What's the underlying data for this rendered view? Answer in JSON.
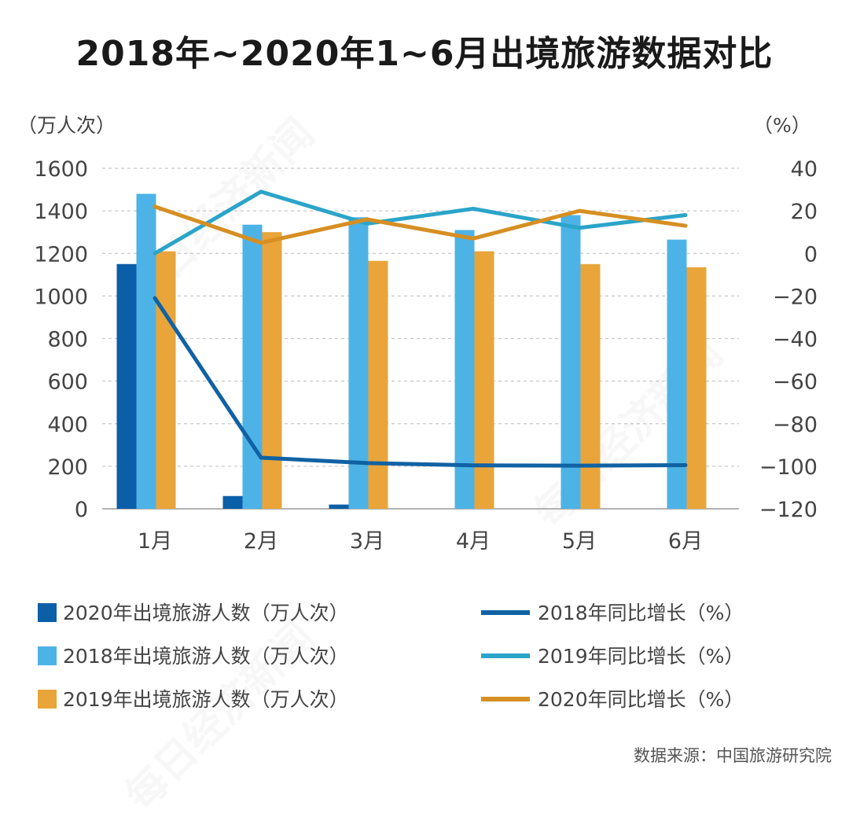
{
  "title": "2018年~2020年1~6月出境旅游数据对比",
  "watermark": "每日经济新闻",
  "source": "数据来源：中国旅游研究院",
  "colors": {
    "bar_2020": "#0b5ea8",
    "bar_2018": "#4db3e6",
    "bar_2019": "#e9a53a",
    "line_2018": "#1062a3",
    "line_2019": "#2ba4c9",
    "line_2020": "#d68f22",
    "grid": "#c8c8c8",
    "axis": "#9a9a9a"
  },
  "chart_data": {
    "type": "bar+line",
    "categories": [
      "1月",
      "2月",
      "3月",
      "4月",
      "5月",
      "6月"
    ],
    "y_left": {
      "unit": "（万人次）",
      "ylim": [
        0,
        1600
      ],
      "ticks": [
        0,
        200,
        400,
        600,
        800,
        1000,
        1200,
        1400,
        1600
      ]
    },
    "y_right": {
      "unit": "（%）",
      "ylim": [
        -120,
        40
      ],
      "ticks": [
        -120,
        -100,
        -80,
        -60,
        -40,
        -20,
        0,
        20,
        40
      ]
    },
    "bar_series": [
      {
        "name": "2020年出境旅游人数（万人次）",
        "key": "bar_2020",
        "values": [
          1150,
          60,
          20,
          0,
          0,
          0
        ]
      },
      {
        "name": "2018年出境旅游人数（万人次）",
        "key": "bar_2018",
        "values": [
          1480,
          1335,
          1370,
          1310,
          1380,
          1265
        ]
      },
      {
        "name": "2019年出境旅游人数（万人次）",
        "key": "bar_2019",
        "values": [
          1210,
          1300,
          1165,
          1210,
          1150,
          1135
        ]
      }
    ],
    "line_series": [
      {
        "name": "2018年同比增长（%）",
        "key": "line_2018",
        "values": [
          -21,
          -96,
          -98.5,
          -99.6,
          -99.7,
          -99.5
        ]
      },
      {
        "name": "2019年同比增长（%）",
        "key": "line_2019",
        "values": [
          0,
          29,
          14,
          21,
          12,
          18
        ]
      },
      {
        "name": "2020年同比增长（%）",
        "key": "line_2020",
        "values": [
          22,
          5,
          16,
          7,
          20,
          13
        ]
      }
    ],
    "grid": true
  }
}
